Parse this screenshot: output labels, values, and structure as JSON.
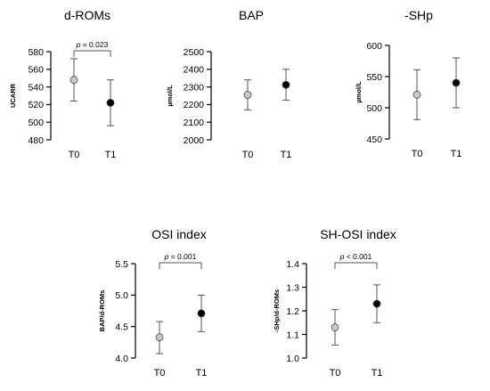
{
  "chart_data": [
    {
      "type": "scatter",
      "title": "d-ROMs",
      "ylabel": "UCARR",
      "ylim": [
        480,
        580
      ],
      "yticks": [
        480,
        500,
        520,
        540,
        560,
        580
      ],
      "categories": [
        "T0",
        "T1"
      ],
      "means": [
        548,
        522
      ],
      "error_low": [
        524,
        496
      ],
      "error_high": [
        572,
        548
      ],
      "marker_colors": [
        "#c8c8c8",
        "#000000"
      ],
      "annotation": {
        "prefix": "p",
        "text": " = 0.023"
      }
    },
    {
      "type": "scatter",
      "title": "BAP",
      "ylabel": "µmol/L",
      "ylim": [
        2000,
        2500
      ],
      "yticks": [
        2000,
        2100,
        2200,
        2300,
        2400,
        2500
      ],
      "categories": [
        "T0",
        "T1"
      ],
      "means": [
        2255,
        2312
      ],
      "error_low": [
        2170,
        2225
      ],
      "error_high": [
        2340,
        2400
      ],
      "marker_colors": [
        "#c8c8c8",
        "#000000"
      ],
      "annotation": null
    },
    {
      "type": "scatter",
      "title": "-SHp",
      "ylabel": "µmol/L",
      "ylim": [
        450,
        600
      ],
      "yticks": [
        450,
        500,
        550,
        600
      ],
      "categories": [
        "T0",
        "T1"
      ],
      "means": [
        521,
        540
      ],
      "error_low": [
        481,
        500
      ],
      "error_high": [
        561,
        580
      ],
      "marker_colors": [
        "#c8c8c8",
        "#000000"
      ],
      "annotation": null
    },
    {
      "type": "scatter",
      "title": "OSI index",
      "ylabel": "BAP/d-ROMs",
      "ylim": [
        4.0,
        5.5
      ],
      "yticks": [
        4.0,
        4.5,
        5.0,
        5.5
      ],
      "ytick_decimals": 1,
      "categories": [
        "T0",
        "T1"
      ],
      "means": [
        4.33,
        4.71
      ],
      "error_low": [
        4.07,
        4.42
      ],
      "error_high": [
        4.58,
        5.0
      ],
      "marker_colors": [
        "#c8c8c8",
        "#000000"
      ],
      "annotation": {
        "prefix": "p",
        "text": " = 0.001"
      }
    },
    {
      "type": "scatter",
      "title": "SH-OSI index",
      "ylabel": "-SHp/d-ROMs",
      "ylim": [
        1.0,
        1.4
      ],
      "yticks": [
        1.0,
        1.1,
        1.2,
        1.3,
        1.4
      ],
      "ytick_decimals": 1,
      "categories": [
        "T0",
        "T1"
      ],
      "means": [
        1.13,
        1.23
      ],
      "error_low": [
        1.055,
        1.15
      ],
      "error_high": [
        1.205,
        1.31
      ],
      "marker_colors": [
        "#c8c8c8",
        "#000000"
      ],
      "annotation": {
        "prefix": "p",
        "text": " < 0.001"
      }
    }
  ]
}
